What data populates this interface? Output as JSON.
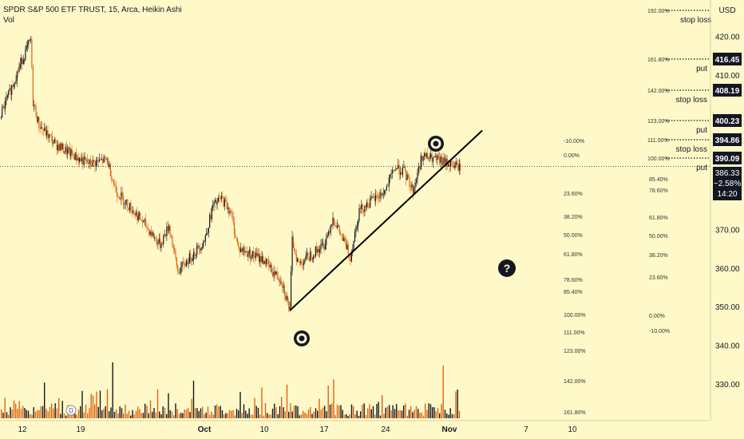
{
  "header": {
    "symbol_line": "SPDR S&P 500 ETF TRUST, 15, Arca, Heikin Ashi",
    "volume_label": "Vol"
  },
  "colors": {
    "background": "#fff9c9",
    "up_candle": "#131722",
    "down_candle": "#e0620f",
    "trendline": "#000000",
    "price_tag_bg": "#131722",
    "price_tag_text": "#ffffff"
  },
  "icons": [
    "target-icon",
    "target-icon",
    "question-icon"
  ],
  "chart_data": {
    "type": "candlestick",
    "currency": "USD",
    "x_tick_labels": [
      "12",
      "19",
      "Oct",
      "10",
      "17",
      "24",
      "Nov",
      "7",
      "10"
    ],
    "y_tick_labels": [
      {
        "value": 420,
        "label": "420.00"
      },
      {
        "value": 410,
        "label": "410.00"
      },
      {
        "value": 370,
        "label": "370.00"
      },
      {
        "value": 360,
        "label": "360.00"
      },
      {
        "value": 350,
        "label": "350.00"
      },
      {
        "value": 340,
        "label": "340.00"
      },
      {
        "value": 330,
        "label": "330.00"
      }
    ],
    "price_tags": [
      {
        "value": 416.45,
        "label": "416.45",
        "annotation": "put"
      },
      {
        "value": 408.19,
        "label": "408.19",
        "annotation": "stop loss"
      },
      {
        "value": 400.23,
        "label": "400.23",
        "annotation": "put"
      },
      {
        "value": 394.86,
        "label": "394.86",
        "annotation": "stop loss"
      },
      {
        "value": 390.09,
        "label": "390.09",
        "annotation": "put"
      }
    ],
    "top_annotation": {
      "pct": "192.00%",
      "label": "stop loss"
    },
    "current": {
      "price": "386.33",
      "change": "−2.58%",
      "countdown": "14:20"
    },
    "fib_extension_levels": [
      "161.80%",
      "142.00%",
      "123.00%",
      "111.00%",
      "100.00%"
    ],
    "fib_retracement_1": [
      "-10.00%",
      "0.00%",
      "23.60%",
      "38.20%",
      "50.00%",
      "61.80%",
      "78.60%",
      "85.40%",
      "100.00%",
      "111.00%",
      "123.00%",
      "142.00%",
      "161.80%"
    ],
    "fib_retracement_2": [
      "85.40%",
      "78.60%",
      "61.80%",
      "50.00%",
      "38.20%",
      "23.60%",
      "0.00%",
      "-10.00%"
    ],
    "price_path": [
      [
        "Sep 9",
        399
      ],
      [
        "Sep 12",
        414
      ],
      [
        "Sep 13",
        419
      ],
      [
        "Sep 13",
        403
      ],
      [
        "Sep 14",
        397
      ],
      [
        "Sep 16",
        392
      ],
      [
        "Sep 19",
        388
      ],
      [
        "Sep 20",
        387
      ],
      [
        "Sep 22",
        388
      ],
      [
        "Sep 23",
        380
      ],
      [
        "Sep 26",
        372
      ],
      [
        "Sep 27",
        369
      ],
      [
        "Sep 28",
        366
      ],
      [
        "Sep 29",
        371
      ],
      [
        "Sep 30",
        359
      ],
      [
        "Oct 3",
        367
      ],
      [
        "Oct 4",
        376
      ],
      [
        "Oct 5",
        378
      ],
      [
        "Oct 6",
        375
      ],
      [
        "Oct 7",
        365
      ],
      [
        "Oct 10",
        362
      ],
      [
        "Oct 11",
        359
      ],
      [
        "Oct 12",
        357
      ],
      [
        "Oct 13",
        349
      ],
      [
        "Oct 13",
        367
      ],
      [
        "Oct 14",
        361
      ],
      [
        "Oct 17",
        366
      ],
      [
        "Oct 18",
        373
      ],
      [
        "Oct 19",
        368
      ],
      [
        "Oct 20",
        363
      ],
      [
        "Oct 21",
        375
      ],
      [
        "Oct 24",
        380
      ],
      [
        "Oct 25",
        386
      ],
      [
        "Oct 26",
        385
      ],
      [
        "Oct 27",
        380
      ],
      [
        "Oct 28",
        389
      ],
      [
        "Oct 31",
        387
      ],
      [
        "Nov 1",
        386
      ]
    ],
    "trendline": {
      "start": [
        "Oct 13",
        349
      ],
      "end": [
        "Nov 3",
        395.6
      ]
    },
    "volume": "relative volume bars, unscaled"
  }
}
